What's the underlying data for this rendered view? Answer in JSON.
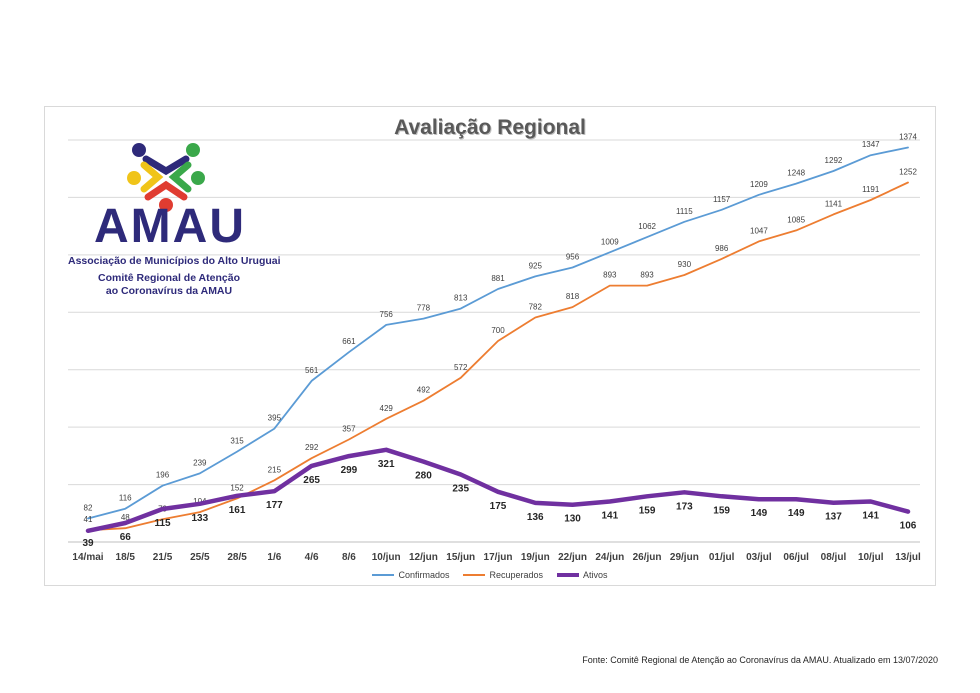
{
  "page": {
    "title": "Avaliação Regional",
    "logo": {
      "wordmark": "AMAU",
      "organization": "Associação de Municípios do Alto Uruguai",
      "committee_line1": "Comitê Regional de Atenção",
      "committee_line2": "ao Coronavírus da AMAU"
    },
    "footer": "Fonte: Comitê Regional de Atenção ao Coronavírus da AMAU. Atualizado em 13/07/2020"
  },
  "colors": {
    "confirmados": "#5b9bd5",
    "recuperados": "#ed7d31",
    "ativos": "#7030a0",
    "grid": "#d9d9d9"
  },
  "chart_data": {
    "type": "line",
    "title": "Avaliação Regional",
    "xlabel": "",
    "ylabel": "",
    "ylim": [
      0,
      1400
    ],
    "grid": true,
    "legend_position": "bottom",
    "categories": [
      "14/mai",
      "18/5",
      "21/5",
      "25/5",
      "28/5",
      "1/6",
      "4/6",
      "8/6",
      "10/jun",
      "12/jun",
      "15/jun",
      "17/jun",
      "19/jun",
      "22/jun",
      "24/jun",
      "26/jun",
      "29/jun",
      "01/jul",
      "03/jul",
      "06/jul",
      "08/jul",
      "10/jul",
      "13/jul"
    ],
    "series": [
      {
        "name": "Confirmados",
        "values": [
          82,
          116,
          196,
          239,
          315,
          395,
          561,
          661,
          756,
          778,
          813,
          881,
          925,
          956,
          1009,
          1062,
          1115,
          1157,
          1209,
          1248,
          1292,
          1347,
          1374
        ]
      },
      {
        "name": "Recuperados",
        "values": [
          41,
          48,
          79,
          104,
          152,
          215,
          292,
          357,
          429,
          492,
          572,
          700,
          782,
          818,
          893,
          893,
          930,
          986,
          1047,
          1085,
          1141,
          1191,
          1252
        ]
      },
      {
        "name": "Ativos",
        "values": [
          39,
          66,
          115,
          133,
          161,
          177,
          265,
          299,
          321,
          280,
          235,
          175,
          136,
          130,
          141,
          159,
          173,
          159,
          149,
          149,
          137,
          141,
          106
        ]
      }
    ]
  }
}
